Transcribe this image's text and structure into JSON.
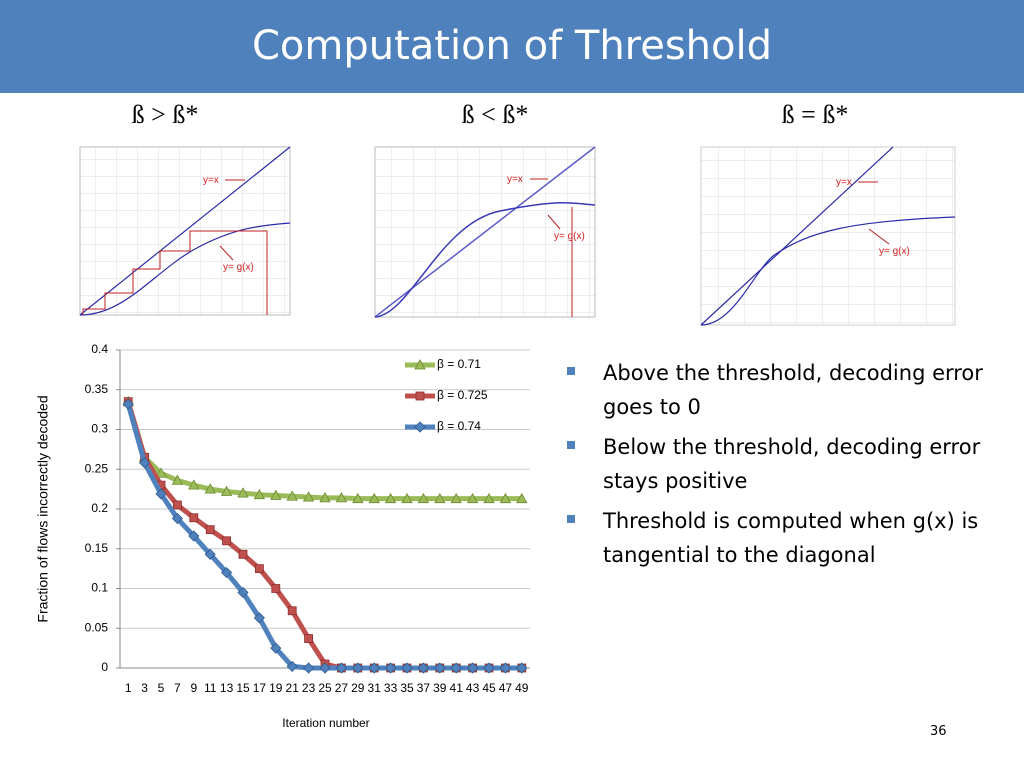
{
  "header": {
    "title": "Computation of Threshold"
  },
  "panels": [
    {
      "heading": "ß > ß*",
      "line_label": "y=x",
      "curve_label": "y= g(x)"
    },
    {
      "heading": "ß < ß*",
      "line_label": "y=x",
      "curve_label": "y= g(x)"
    },
    {
      "heading": "ß = ß*",
      "line_label": "y=x",
      "curve_label": "y= g(x)"
    }
  ],
  "chart_data": {
    "type": "line",
    "x_label": "Iteration number",
    "y_label": "Fraction of flows incorrectly decoded",
    "categories": [
      "1",
      "3",
      "5",
      "7",
      "9",
      "11",
      "13",
      "15",
      "17",
      "19",
      "21",
      "23",
      "25",
      "27",
      "29",
      "31",
      "33",
      "35",
      "37",
      "39",
      "41",
      "43",
      "45",
      "47",
      "49"
    ],
    "series": [
      {
        "name": "β = 0.71",
        "color": "#9bbb59",
        "marker": "triangle",
        "values": [
          0.335,
          0.265,
          0.245,
          0.236,
          0.23,
          0.225,
          0.222,
          0.22,
          0.218,
          0.217,
          0.216,
          0.215,
          0.214,
          0.214,
          0.213,
          0.213,
          0.213,
          0.213,
          0.213,
          0.213,
          0.213,
          0.213,
          0.213,
          0.213,
          0.213
        ]
      },
      {
        "name": "β = 0.725",
        "color": "#c0504d",
        "marker": "square",
        "values": [
          0.335,
          0.265,
          0.23,
          0.205,
          0.189,
          0.174,
          0.16,
          0.143,
          0.125,
          0.1,
          0.072,
          0.037,
          0.005,
          0,
          0,
          0,
          0,
          0,
          0,
          0,
          0,
          0,
          0,
          0,
          0
        ]
      },
      {
        "name": "β = 0.74",
        "color": "#4f81bd",
        "marker": "diamond",
        "values": [
          0.332,
          0.258,
          0.219,
          0.188,
          0.166,
          0.143,
          0.12,
          0.095,
          0.063,
          0.025,
          0.002,
          0,
          0,
          0,
          0,
          0,
          0,
          0,
          0,
          0,
          0,
          0,
          0,
          0,
          0
        ]
      }
    ],
    "ylim": [
      0,
      0.4
    ],
    "yticks": [
      0,
      0.05,
      0.1,
      0.15,
      0.2,
      0.25,
      0.3,
      0.35,
      0.4
    ],
    "grid": true,
    "legend": "top-right"
  },
  "bullets": [
    "Above the threshold, decoding error goes to 0",
    "Below the threshold, decoding error stays positive",
    "Threshold is computed when g(x) is tangential to the diagonal"
  ],
  "page_number": "36"
}
